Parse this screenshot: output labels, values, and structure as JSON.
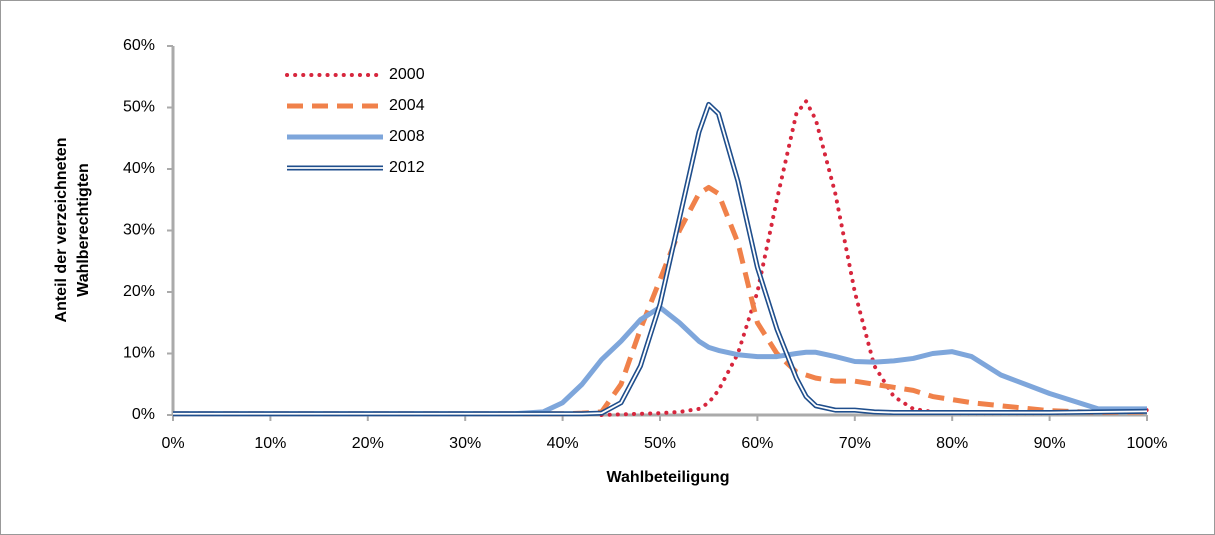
{
  "chart_data": {
    "type": "line",
    "xlabel": "Wahlbeteiligung",
    "ylabel": [
      "Anteil der verzeichneten",
      "Wahlberechtigten"
    ],
    "x": [
      0,
      10,
      20,
      30,
      35,
      38,
      40,
      42,
      44,
      46,
      48,
      50,
      52,
      54,
      55,
      56,
      58,
      60,
      62,
      64,
      65,
      66,
      68,
      70,
      72,
      74,
      76,
      78,
      80,
      82,
      85,
      90,
      95,
      100
    ],
    "series": [
      {
        "name": "2000",
        "color": "#d7263d",
        "style": "dotted",
        "values": [
          null,
          null,
          null,
          null,
          null,
          null,
          null,
          null,
          0,
          0.1,
          0.2,
          0.3,
          0.5,
          1,
          2,
          4,
          10,
          20,
          35,
          49,
          51,
          48,
          36,
          20,
          8,
          3,
          1,
          0.5,
          0.3,
          0.3,
          0.3,
          0.3,
          0.5,
          0.8
        ]
      },
      {
        "name": "2004",
        "color": "#f0814a",
        "style": "dashed",
        "values": [
          0.2,
          0.2,
          0.2,
          0.2,
          0.2,
          0.2,
          0.2,
          0.3,
          0.5,
          5,
          14,
          22,
          30,
          36,
          37,
          36,
          28,
          15,
          10,
          7,
          6.5,
          6,
          5.5,
          5.5,
          5,
          4.5,
          4,
          3,
          2.5,
          2,
          1.5,
          0.7,
          0.4,
          0.5
        ]
      },
      {
        "name": "2008",
        "color": "#7ea6db",
        "style": "thick",
        "values": [
          0.2,
          0.2,
          0.2,
          0.2,
          0.2,
          0.5,
          2,
          5,
          9,
          12,
          15.5,
          17.5,
          15,
          12,
          11,
          10.5,
          9.8,
          9.5,
          9.5,
          10,
          10.2,
          10.2,
          9.5,
          8.7,
          8.6,
          8.8,
          9.2,
          10,
          10.3,
          9.5,
          6.5,
          3.5,
          1,
          1
        ]
      },
      {
        "name": "2012",
        "color": "#1f4e8c",
        "style": "double",
        "values": [
          0.2,
          0.2,
          0.2,
          0.2,
          0.2,
          0.2,
          0.2,
          0.2,
          0.3,
          2,
          8,
          18,
          32,
          46,
          50.5,
          49,
          38,
          24,
          14,
          6,
          3,
          1.5,
          0.8,
          0.8,
          0.5,
          0.4,
          0.4,
          0.4,
          0.4,
          0.4,
          0.4,
          0.4,
          0.5,
          0.6
        ]
      }
    ],
    "xlim": [
      0,
      100
    ],
    "xticks": [
      {
        "value": 0,
        "label": "0%"
      },
      {
        "value": 10,
        "label": "10%"
      },
      {
        "value": 20,
        "label": "20%"
      },
      {
        "value": 30,
        "label": "30%"
      },
      {
        "value": 40,
        "label": "40%"
      },
      {
        "value": 50,
        "label": "50%"
      },
      {
        "value": 60,
        "label": "60%"
      },
      {
        "value": 70,
        "label": "70%"
      },
      {
        "value": 80,
        "label": "80%"
      },
      {
        "value": 90,
        "label": "90%"
      },
      {
        "value": 100,
        "label": "100%"
      }
    ],
    "ylim": [
      0,
      60
    ],
    "yticks": [
      {
        "value": 0,
        "label": "0%"
      },
      {
        "value": 10,
        "label": "10%"
      },
      {
        "value": 20,
        "label": "20%"
      },
      {
        "value": 30,
        "label": "30%"
      },
      {
        "value": 40,
        "label": "40%"
      },
      {
        "value": 50,
        "label": "50%"
      },
      {
        "value": 60,
        "label": "60%"
      }
    ],
    "grid": false,
    "legend": "top-left"
  }
}
